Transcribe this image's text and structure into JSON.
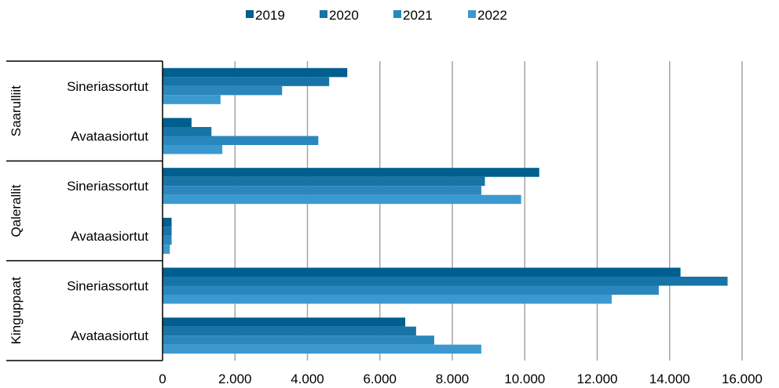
{
  "chart_data": {
    "type": "bar",
    "orientation": "horizontal",
    "title": "",
    "xlabel": "",
    "ylabel": "",
    "xlim": [
      0,
      16000
    ],
    "x_ticks": [
      "0",
      "2.000",
      "4.000",
      "6.000",
      "8.000",
      "10.000",
      "12.000",
      "14.000",
      "16.000"
    ],
    "grid": "vertical",
    "legend_position": "top",
    "groups": [
      {
        "name": "Saarulliit",
        "categories": [
          {
            "name": "Sineriassortut",
            "values": [
              5100,
              4600,
              3300,
              1600
            ]
          },
          {
            "name": "Avataasiortut",
            "values": [
              800,
              1350,
              4300,
              1650
            ]
          }
        ]
      },
      {
        "name": "Qalerallit",
        "categories": [
          {
            "name": "Sineriassortut",
            "values": [
              10400,
              8900,
              8800,
              9900
            ]
          },
          {
            "name": "Avataasiortut",
            "values": [
              250,
              250,
              250,
              200
            ]
          }
        ]
      },
      {
        "name": "Kinguppaat",
        "categories": [
          {
            "name": "Sineriassortut",
            "values": [
              14300,
              15600,
              13700,
              12400
            ]
          },
          {
            "name": "Avataasiortut",
            "values": [
              6700,
              7000,
              7500,
              8800
            ]
          }
        ]
      }
    ],
    "series": [
      {
        "name": "2019",
        "color": "#005f8f"
      },
      {
        "name": "2020",
        "color": "#1873a6"
      },
      {
        "name": "2021",
        "color": "#2a87bd"
      },
      {
        "name": "2022",
        "color": "#3b99cf"
      }
    ]
  }
}
